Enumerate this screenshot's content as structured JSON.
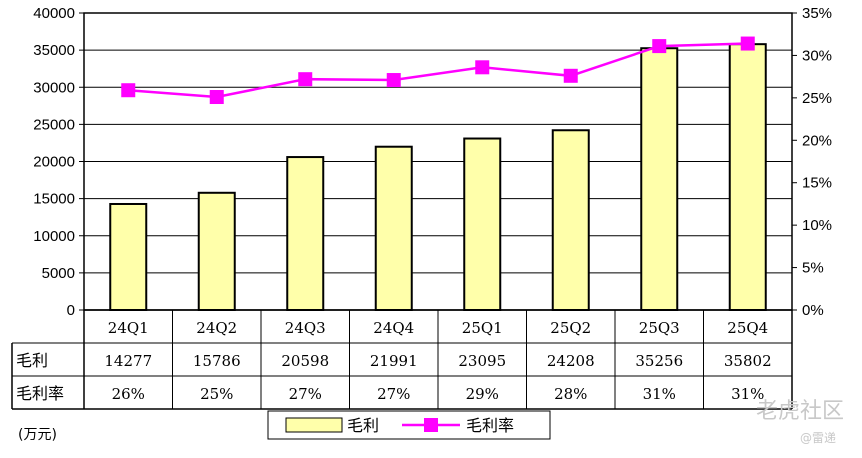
{
  "chart_data": {
    "type": "bar+line",
    "categories": [
      "24Q1",
      "24Q2",
      "24Q3",
      "24Q4",
      "25Q1",
      "25Q2",
      "25Q3",
      "25Q4"
    ],
    "series": [
      {
        "name": "毛利",
        "type": "bar",
        "axis": "left",
        "values": [
          14277,
          15786,
          20598,
          21991,
          23095,
          24208,
          35256,
          35802
        ],
        "color": "#FFFFAA"
      },
      {
        "name": "毛利率",
        "type": "line",
        "axis": "right",
        "values": [
          25.9,
          25.1,
          27.2,
          27.1,
          28.6,
          27.6,
          31.1,
          31.4
        ],
        "color": "#FF00FF"
      }
    ],
    "table_rows": [
      {
        "label": "毛利",
        "cells": [
          "14277",
          "15786",
          "20598",
          "21991",
          "23095",
          "24208",
          "35256",
          "35802"
        ]
      },
      {
        "label": "毛利率",
        "cells": [
          "26%",
          "25%",
          "27%",
          "27%",
          "29%",
          "28%",
          "31%",
          "31%"
        ]
      }
    ],
    "y_left": {
      "min": 0,
      "max": 40000,
      "step": 5000,
      "ticks": [
        "0",
        "5000",
        "10000",
        "15000",
        "20000",
        "25000",
        "30000",
        "35000",
        "40000"
      ]
    },
    "y_right": {
      "min": 0,
      "max": 35,
      "step": 5,
      "ticks": [
        "0%",
        "5%",
        "10%",
        "15%",
        "20%",
        "25%",
        "30%",
        "35%"
      ]
    },
    "unit_label": "(万元)",
    "legend": {
      "placement": "bottom",
      "items": [
        "毛利",
        "毛利率"
      ]
    },
    "grid": true
  },
  "watermark": {
    "text": "老虎社区",
    "user": "@雷递"
  }
}
